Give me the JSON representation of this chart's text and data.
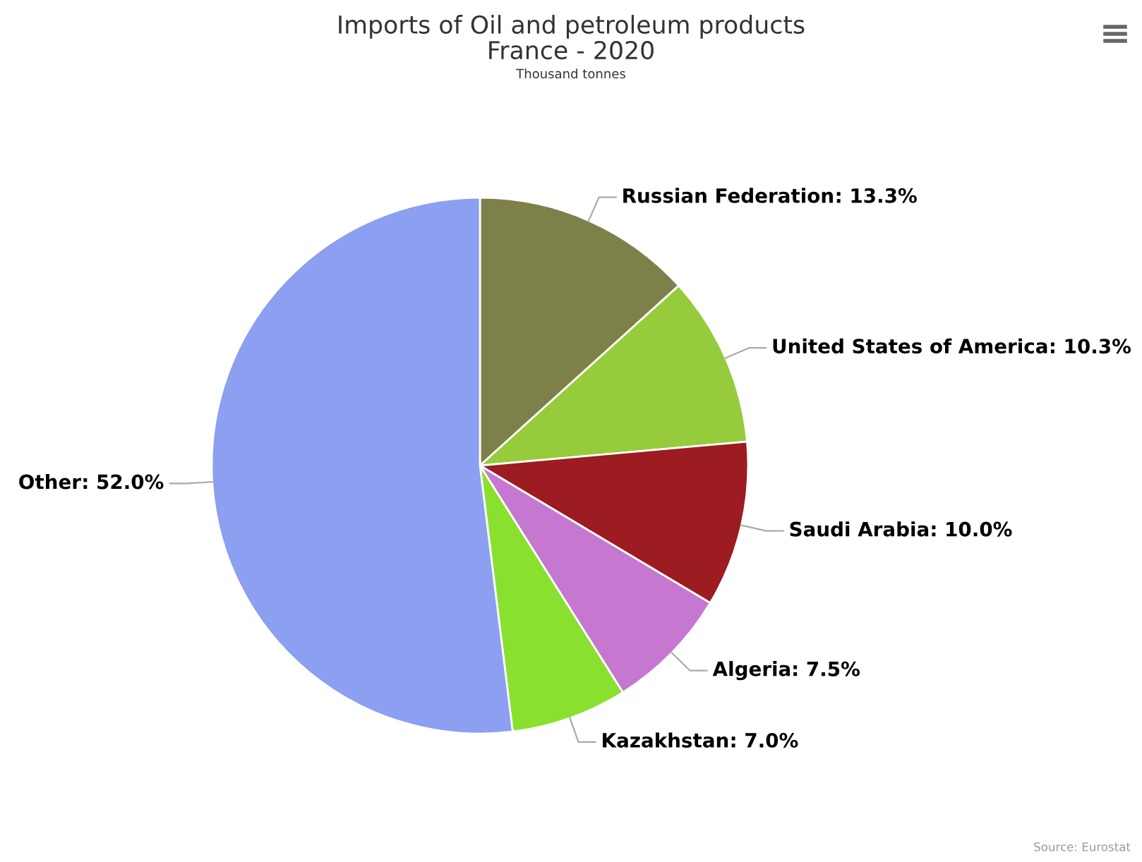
{
  "chart_data": {
    "type": "pie",
    "title": "Imports of Oil and petroleum products\nFrance - 2020",
    "subtitle": "Thousand tonnes",
    "categories": [
      "Russian Federation",
      "United States of America",
      "Saudi Arabia",
      "Algeria",
      "Kazakhstan",
      "Other"
    ],
    "values": [
      13.3,
      10.3,
      10.0,
      7.5,
      7.0,
      52.0
    ],
    "colors": [
      "#7e8049",
      "#96cc3c",
      "#9c1c21",
      "#c678d0",
      "#8ae02e",
      "#8c9ff0"
    ],
    "value_labels": [
      ": 13.3%",
      ": 10.3%",
      ": 10.0%",
      ": 7.5%",
      ": 7.0%",
      ": 52.0%"
    ],
    "annotations": [
      "Source: Eurostat"
    ]
  }
}
